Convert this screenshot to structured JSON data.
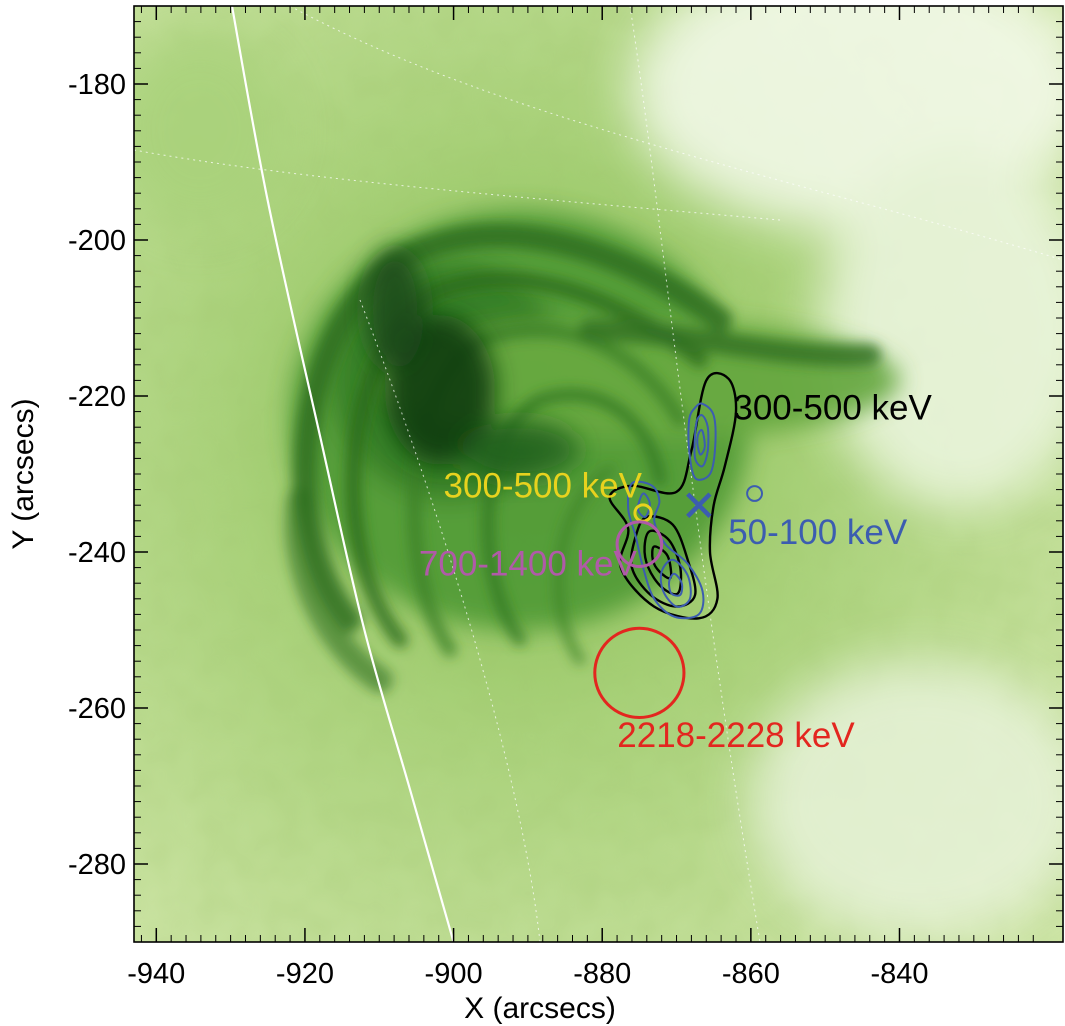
{
  "chart_data": {
    "type": "image-contour",
    "xlabel": "X (arcsecs)",
    "ylabel": "Y (arcsecs)",
    "xlim": [
      -943,
      -818
    ],
    "ylim": [
      -290,
      -170
    ],
    "xticks": [
      -940,
      -920,
      -900,
      -880,
      -860,
      -840
    ],
    "yticks": [
      -180,
      -200,
      -220,
      -240,
      -260,
      -280
    ],
    "xtick_labels": [
      "-940",
      "-920",
      "-900",
      "-880",
      "-860",
      "-840"
    ],
    "ytick_labels": [
      "-180",
      "-200",
      "-220",
      "-240",
      "-260",
      "-280"
    ],
    "background": {
      "description": "green EUV intensity image with dark post-flare loops",
      "colormap": [
        "#ffffff",
        "#d9ecb3",
        "#8fc25a",
        "#3f8a2e",
        "#0f3c14"
      ]
    },
    "limb": {
      "points": [
        [
          -930,
          -169
        ],
        [
          -925,
          -195
        ],
        [
          -918,
          -225
        ],
        [
          -912,
          -250
        ],
        [
          -906,
          -270
        ],
        [
          -900,
          -290
        ]
      ],
      "color": "#ffffff"
    },
    "labels": [
      {
        "text": "300-500 keV",
        "x": -849,
        "y": -223,
        "color": "#000000"
      },
      {
        "text": "300-500 keV",
        "x": -888,
        "y": -233,
        "color": "#e8d21e"
      },
      {
        "text": "50-100 keV",
        "x": -851,
        "y": -239,
        "color": "#3c5db0"
      },
      {
        "text": "700-1400 keV",
        "x": -890,
        "y": -243,
        "color": "#b05aa8"
      },
      {
        "text": "2218-2228 keV",
        "x": -862,
        "y": -265,
        "color": "#e3261f"
      }
    ],
    "sources": [
      {
        "band": "300-500 keV",
        "shape": "circle",
        "x": -874.5,
        "y": -235,
        "r": 1.1,
        "color": "#e8d21e"
      },
      {
        "band": "700-1400 keV",
        "shape": "circle",
        "x": -875.0,
        "y": -239.0,
        "r": 3.0,
        "color": "#b05aa8"
      },
      {
        "band": "2218-2228 keV",
        "shape": "circle",
        "x": -875.0,
        "y": -255.5,
        "r": 6.0,
        "color": "#e3261f"
      },
      {
        "band": "50-100 keV",
        "shape": "cross",
        "x": -867.0,
        "y": -234.0,
        "r": 1.5,
        "color": "#3c5db0"
      },
      {
        "band": "50-100 keV",
        "shape": "small-circle",
        "x": -859.5,
        "y": -232.5,
        "r": 1.0,
        "color": "#3c5db0"
      }
    ],
    "contours": [
      {
        "name": "300-500 keV",
        "color": "#000000",
        "levels": [
          {
            "points": [
              [
                -866,
                -218
              ],
              [
                -863,
                -217.8
              ],
              [
                -862,
                -222
              ],
              [
                -863.5,
                -229
              ],
              [
                -865,
                -234
              ],
              [
                -865.5,
                -240
              ],
              [
                -864.5,
                -246
              ],
              [
                -867,
                -248.5
              ],
              [
                -873,
                -247
              ],
              [
                -877.5,
                -242
              ],
              [
                -876.5,
                -237
              ],
              [
                -879,
                -233
              ],
              [
                -876,
                -231.5
              ],
              [
                -870,
                -232.3
              ],
              [
                -868,
                -227
              ]
            ]
          },
          {
            "points": [
              [
                -874,
                -235.5
              ],
              [
                -870.5,
                -236.5
              ],
              [
                -868.5,
                -241
              ],
              [
                -867.5,
                -245.5
              ],
              [
                -870,
                -247
              ],
              [
                -873.5,
                -245.5
              ],
              [
                -876,
                -242
              ],
              [
                -875.5,
                -238
              ]
            ]
          },
          {
            "points": [
              [
                -873.5,
                -237.3
              ],
              [
                -871,
                -238.5
              ],
              [
                -869.5,
                -242
              ],
              [
                -869.8,
                -245.3
              ],
              [
                -872,
                -244.5
              ],
              [
                -873.8,
                -242
              ],
              [
                -874.3,
                -239.3
              ]
            ]
          },
          {
            "points": [
              [
                -873,
                -239.3
              ],
              [
                -871.2,
                -240.5
              ],
              [
                -870.8,
                -243.3
              ],
              [
                -872.3,
                -242.5
              ],
              [
                -873.2,
                -241
              ]
            ]
          }
        ]
      },
      {
        "name": "50-100 keV",
        "color": "#3c5db0",
        "levels": [
          {
            "points": [
              [
                -866.5,
                -221
              ],
              [
                -865,
                -222.5
              ],
              [
                -864.8,
                -226.5
              ],
              [
                -865.5,
                -230
              ],
              [
                -867.5,
                -230.5
              ],
              [
                -868.3,
                -227
              ],
              [
                -868.3,
                -223
              ],
              [
                -867.5,
                -221.5
              ]
            ]
          },
          {
            "points": [
              [
                -866.5,
                -222.5
              ],
              [
                -865.8,
                -224
              ],
              [
                -865.8,
                -227
              ],
              [
                -866.5,
                -229
              ],
              [
                -867.5,
                -228
              ],
              [
                -867.5,
                -225
              ],
              [
                -867.2,
                -223
              ]
            ]
          },
          {
            "points": [
              [
                -866.5,
                -224.5
              ],
              [
                -866.2,
                -226.5
              ],
              [
                -866.8,
                -227.5
              ],
              [
                -867.2,
                -226
              ],
              [
                -867,
                -224.7
              ]
            ]
          },
          {
            "points": [
              [
                -876,
                -231.2
              ],
              [
                -873.3,
                -231.5
              ],
              [
                -872.3,
                -233.5
              ],
              [
                -873,
                -236
              ],
              [
                -871.5,
                -239
              ],
              [
                -868.5,
                -241.5
              ],
              [
                -866.5,
                -245
              ],
              [
                -867,
                -248
              ],
              [
                -870.3,
                -248.3
              ],
              [
                -873,
                -246
              ],
              [
                -874.5,
                -242
              ],
              [
                -875.5,
                -238
              ],
              [
                -876.5,
                -234.5
              ]
            ]
          },
          {
            "points": [
              [
                -874.5,
                -232.5
              ],
              [
                -873.6,
                -233.8
              ],
              [
                -874.2,
                -235.5
              ],
              [
                -875.2,
                -234.5
              ]
            ]
          },
          {
            "points": [
              [
                -870.5,
                -241
              ],
              [
                -868.5,
                -243
              ],
              [
                -868.2,
                -246
              ],
              [
                -870,
                -247
              ],
              [
                -871.8,
                -245
              ],
              [
                -872,
                -242.5
              ]
            ]
          },
          {
            "points": [
              [
                -870.3,
                -242.8
              ],
              [
                -869.3,
                -244
              ],
              [
                -869.5,
                -245.5
              ],
              [
                -870.7,
                -245.3
              ],
              [
                -871,
                -243.8
              ]
            ]
          }
        ]
      }
    ]
  }
}
